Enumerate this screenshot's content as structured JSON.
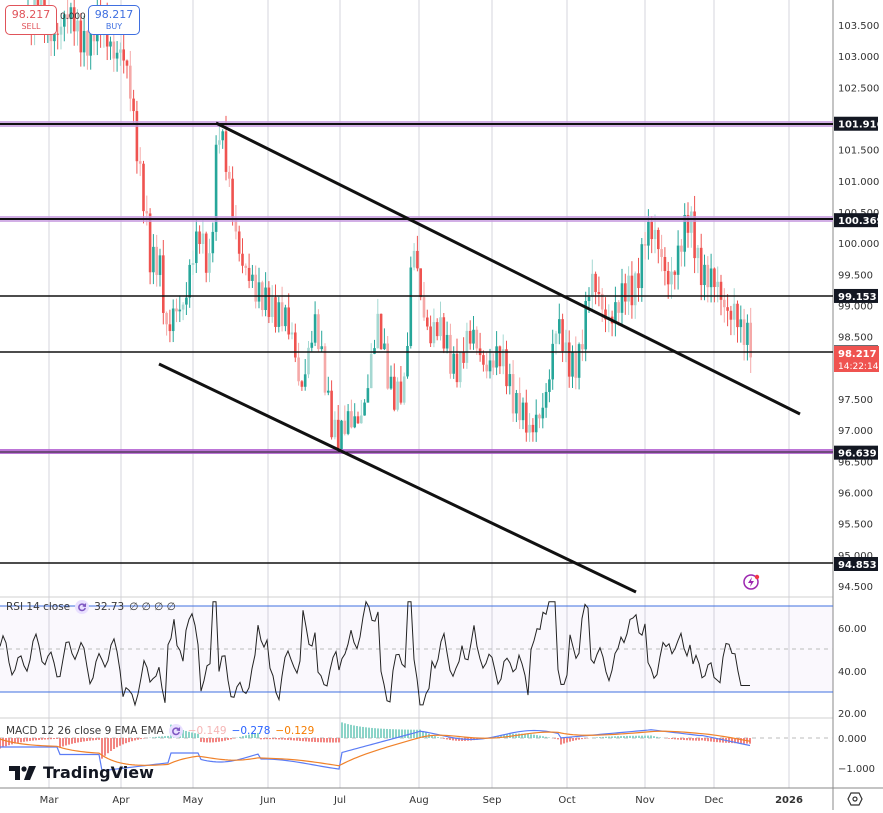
{
  "trade_panel": {
    "sell": {
      "price": "98.217",
      "label": "SELL"
    },
    "buy": {
      "price": "98.217",
      "label": "BUY"
    },
    "spread": "0.000"
  },
  "price_axis": {
    "ticks": [
      "103.500",
      "103.000",
      "102.500",
      "101.500",
      "101.000",
      "100.500",
      "100.000",
      "99.500",
      "99.000",
      "98.500",
      "97.500",
      "97.000",
      "96.500",
      "96.000",
      "95.500",
      "95.000",
      "94.500"
    ]
  },
  "horizontal_levels": [
    {
      "value": "101.916",
      "style": "black-purple"
    },
    {
      "value": "100.369",
      "style": "black-purple"
    },
    {
      "value": "99.153",
      "style": "black"
    },
    {
      "value": "98.248",
      "style": "black"
    },
    {
      "value": "96.639",
      "style": "black-purple"
    },
    {
      "value": "94.853",
      "style": "black"
    }
  ],
  "last_price": {
    "value": "98.217",
    "countdown": "14:22:14",
    "color": "#ef5350"
  },
  "rsi": {
    "label": "RSI 14 close",
    "value": "32.73",
    "placeholders": [
      "∅",
      "∅",
      "∅",
      "∅"
    ],
    "ticks": [
      "60.00",
      "40.00",
      "20.00"
    ]
  },
  "macd": {
    "label": "MACD 12 26 close 9 EMA EMA",
    "histogram": "−0.149",
    "macd_value": "−0.278",
    "signal_value": "−0.129",
    "ticks": [
      "0.000",
      "−1.000"
    ]
  },
  "time_axis": {
    "labels": [
      "Mar",
      "Apr",
      "May",
      "Jun",
      "Jul",
      "Aug",
      "Sep",
      "Oct",
      "Nov",
      "Dec",
      "2026"
    ]
  },
  "brand": {
    "name": "TradingView"
  },
  "colors": {
    "up": "#26a69a",
    "down": "#ef5350",
    "purple": "#9c27b0",
    "rsi_band": "#3f6fe0",
    "macd_line": "#2962ff",
    "signal_line": "#ff6d00"
  },
  "chart_data": {
    "type": "candlestick",
    "title": "",
    "xlabel": "",
    "ylabel": "",
    "ylim": [
      94.3,
      103.9
    ],
    "x_labels": [
      "Mar",
      "Apr",
      "May",
      "Jun",
      "Jul",
      "Aug",
      "Sep",
      "Oct",
      "Nov",
      "Dec",
      "2026"
    ],
    "close_approx": {
      "Mar": 103.6,
      "Apr-start": 103.2,
      "Apr-mid": 100.0,
      "May-start": 99.5,
      "May-peak": 101.9,
      "Jun": 99.0,
      "Jun-end": 97.8,
      "Jul-low": 96.7,
      "Aug-peak": 100.1,
      "Aug": 98.5,
      "Sep": 98.4,
      "Sep-low": 96.6,
      "Oct": 98.6,
      "Oct-end": 99.0,
      "Nov-peak": 100.3,
      "Nov": 99.6,
      "Dec": 99.1,
      "last": 98.217
    },
    "levels": [
      101.916,
      100.369,
      99.153,
      98.248,
      96.639,
      94.853
    ],
    "trendlines": [
      {
        "name": "upper channel",
        "from": [
          "May",
          101.9
        ],
        "to": [
          "2026",
          97.3
        ]
      },
      {
        "name": "lower channel",
        "from": [
          "Apr",
          98.1
        ],
        "to": [
          "Nov",
          94.4
        ]
      }
    ],
    "indicators": {
      "rsi": {
        "period": 14,
        "value": 32.73,
        "bands": [
          70,
          30
        ],
        "ticks": [
          60,
          40,
          20
        ]
      },
      "macd": {
        "fast": 12,
        "slow": 26,
        "signal": 9,
        "histogram": -0.149,
        "macd": -0.278,
        "signal_value": -0.129
      }
    }
  }
}
